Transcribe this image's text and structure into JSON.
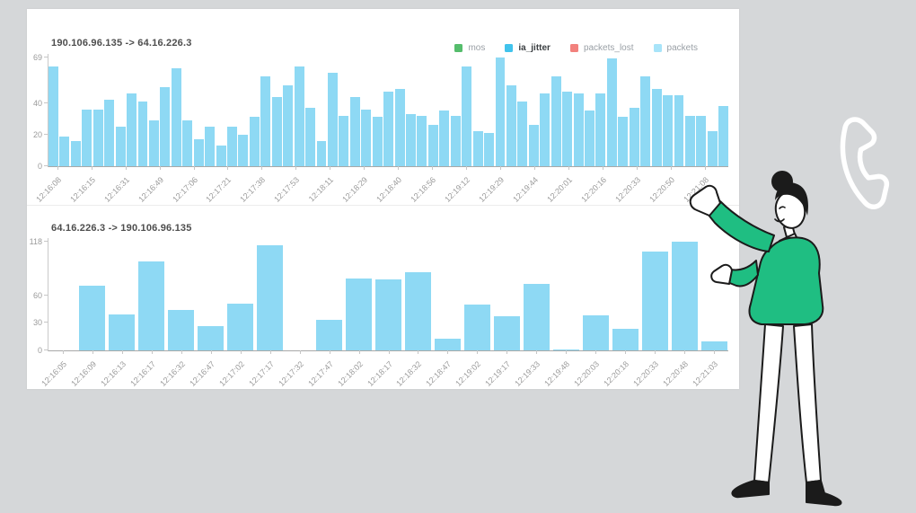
{
  "colors": {
    "background": "#d5d7d9",
    "panel": "#ffffff",
    "bar": "#8ED9F4",
    "illustration_green": "#1FBE82"
  },
  "legend": {
    "items": [
      {
        "label": "mos",
        "color": "#55BD6C",
        "active": false
      },
      {
        "label": "ia_jitter",
        "color": "#41C3EC",
        "active": true
      },
      {
        "label": "packets_lost",
        "color": "#F2817D",
        "active": false
      },
      {
        "label": "packets",
        "color": "#A8E4F9",
        "active": false
      }
    ]
  },
  "chart_data": [
    {
      "type": "bar",
      "title": "190.106.96.135 -> 64.16.226.3",
      "xlabel": "",
      "ylabel": "",
      "grid": false,
      "legend_position": "top-right",
      "legend_entries": [
        "mos",
        "ia_jitter",
        "packets_lost",
        "packets"
      ],
      "active_series": "ia_jitter",
      "bar_color": "#8ED9F4",
      "ylim": [
        0,
        71
      ],
      "y_ticks": [
        0,
        20,
        40,
        69
      ],
      "x_tick_labels": [
        "12:16:08",
        "12:16:15",
        "12:16:31",
        "12:16:49",
        "12:17:06",
        "12:17:21",
        "12:17:38",
        "12:17:53",
        "12:18:11",
        "12:18:29",
        "12:18:40",
        "12:18:56",
        "12:19:12",
        "12:19:29",
        "12:19:44",
        "12:20:01",
        "12:20:16",
        "12:20:33",
        "12:20:50",
        "12:21:08"
      ],
      "values": [
        63,
        19,
        16,
        36,
        36,
        42,
        25,
        46,
        41,
        29,
        50,
        62,
        29,
        17,
        25,
        13,
        25,
        20,
        31,
        57,
        44,
        51,
        63,
        37,
        16,
        59,
        32,
        44,
        36,
        31,
        47,
        49,
        33,
        32,
        26,
        35,
        32,
        63,
        22,
        21,
        69,
        51,
        41,
        26,
        46,
        57,
        47,
        46,
        35,
        46,
        68,
        31,
        37,
        57,
        49,
        45,
        45,
        32,
        32,
        22,
        38
      ]
    },
    {
      "type": "bar",
      "title": "64.16.226.3 -> 190.106.96.135",
      "xlabel": "",
      "ylabel": "",
      "grid": false,
      "bar_color": "#8ED9F4",
      "ylim": [
        0,
        122
      ],
      "y_ticks": [
        0,
        30,
        60,
        118
      ],
      "categories": [
        "12:16:05",
        "12:16:09",
        "12:16:13",
        "12:16:17",
        "12:16:32",
        "12:16:47",
        "12:17:02",
        "12:17:17",
        "12:17:32",
        "12:17:47",
        "12:18:02",
        "12:18:17",
        "12:18:32",
        "12:18:47",
        "12:19:02",
        "12:19:17",
        "12:19:33",
        "12:19:48",
        "12:20:03",
        "12:20:18",
        "12:20:33",
        "12:20:48",
        "12:21:03"
      ],
      "values": [
        0,
        70,
        39,
        97,
        44,
        26,
        51,
        114,
        0,
        33,
        78,
        77,
        85,
        13,
        50,
        37,
        72,
        1,
        38,
        23,
        107,
        118,
        10
      ]
    }
  ]
}
